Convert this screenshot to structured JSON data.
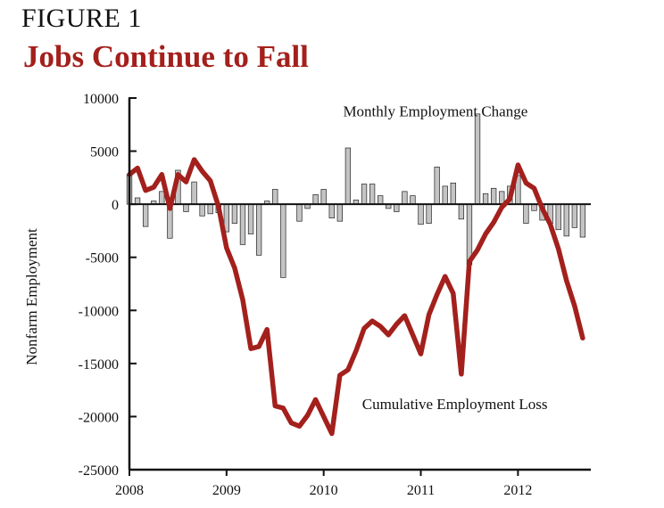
{
  "figure_label": "FIGURE 1",
  "title": "Jobs Continue to Fall",
  "colors": {
    "title": "#a3201c",
    "line": "#a3201c",
    "bar_fill": "#c4c4c4",
    "bar_stroke": "#222222",
    "axis": "#111111"
  },
  "chart_data": {
    "type": "bar+line",
    "ylabel": "Nonfarm Employment",
    "xlabel": "",
    "ylim": [
      -25000,
      10000
    ],
    "yticks": [
      10000,
      5000,
      0,
      -5000,
      -10000,
      -15000,
      -20000,
      -25000
    ],
    "xlim": [
      2008,
      2012.75
    ],
    "xticks": [
      "2008",
      "2009",
      "2010",
      "2011",
      "2012"
    ],
    "annotations": [
      {
        "text": "Monthly Employment Change",
        "x": 2011.15,
        "y": 8300
      },
      {
        "text": "Cumulative Employment Loss",
        "x": 2011.35,
        "y": -19300
      }
    ],
    "series": [
      {
        "name": "Monthly Employment Change",
        "type": "bar",
        "x": [
          2008.0,
          2008.0833,
          2008.1667,
          2008.25,
          2008.3333,
          2008.4167,
          2008.5,
          2008.5833,
          2008.6667,
          2008.75,
          2008.8333,
          2008.9167,
          2009.0,
          2009.0833,
          2009.1667,
          2009.25,
          2009.3333,
          2009.4167,
          2009.5,
          2009.5833,
          2009.6667,
          2009.75,
          2009.8333,
          2009.9167,
          2010.0,
          2010.0833,
          2010.1667,
          2010.25,
          2010.3333,
          2010.4167,
          2010.5,
          2010.5833,
          2010.6667,
          2010.75,
          2010.8333,
          2010.9167,
          2011.0,
          2011.0833,
          2011.1667,
          2011.25,
          2011.3333,
          2011.4167,
          2011.5,
          2011.5833,
          2011.6667,
          2011.75,
          2011.8333,
          2011.9167,
          2012.0,
          2012.0833,
          2012.1667,
          2012.25,
          2012.3333,
          2012.4167,
          2012.5,
          2012.5833,
          2012.6667
        ],
        "values": [
          2800,
          600,
          -2100,
          300,
          1200,
          -3200,
          3200,
          -700,
          2100,
          -1100,
          -900,
          -800,
          -2600,
          -1800,
          -3800,
          -2800,
          -4800,
          300,
          1400,
          -6900,
          0,
          -1600,
          -400,
          900,
          1400,
          -1300,
          -1600,
          5300,
          400,
          1900,
          1900,
          800,
          -400,
          -700,
          1200,
          800,
          -1900,
          -1800,
          3500,
          1700,
          2000,
          -1400,
          -5700,
          8500,
          1000,
          1500,
          1200,
          1700,
          2700,
          -1800,
          -600,
          -1500,
          -1800,
          -2400,
          -3000,
          -2200,
          -3100
        ]
      },
      {
        "name": "Cumulative Employment Loss",
        "type": "line",
        "x": [
          2008.0,
          2008.0833,
          2008.1667,
          2008.25,
          2008.3333,
          2008.4167,
          2008.5,
          2008.5833,
          2008.6667,
          2008.75,
          2008.8333,
          2008.9167,
          2009.0,
          2009.0833,
          2009.1667,
          2009.25,
          2009.3333,
          2009.4167,
          2009.5,
          2009.5833,
          2009.6667,
          2009.75,
          2009.8333,
          2009.9167,
          2010.0,
          2010.0833,
          2010.1667,
          2010.25,
          2010.3333,
          2010.4167,
          2010.5,
          2010.5833,
          2010.6667,
          2010.75,
          2010.8333,
          2010.9167,
          2011.0,
          2011.0833,
          2011.1667,
          2011.25,
          2011.3333,
          2011.4167,
          2011.5,
          2011.5833,
          2011.6667,
          2011.75,
          2011.8333,
          2011.9167,
          2012.0,
          2012.0833,
          2012.1667,
          2012.25,
          2012.3333,
          2012.4167,
          2012.5,
          2012.5833,
          2012.6667
        ],
        "values": [
          2800,
          3400,
          1300,
          1600,
          2800,
          -400,
          2800,
          2100,
          4200,
          3100,
          2200,
          -200,
          -4100,
          -6000,
          -9000,
          -13600,
          -13400,
          -11800,
          -19000,
          -19200,
          -20600,
          -20900,
          -19900,
          -18400,
          -20000,
          -21600,
          -16100,
          -15600,
          -13800,
          -11700,
          -11000,
          -11500,
          -12300,
          -11300,
          -10500,
          -12300,
          -14100,
          -10400,
          -8500,
          -6800,
          -8400,
          -16000,
          -5400,
          -4300,
          -2800,
          -1700,
          -300,
          500,
          3700,
          2000,
          1500,
          -400,
          -1900,
          -4200,
          -7200,
          -9600,
          -12600
        ]
      }
    ]
  }
}
